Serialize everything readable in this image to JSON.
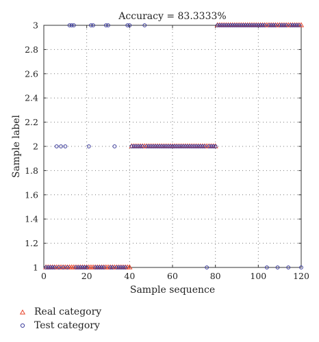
{
  "chart_data": {
    "type": "scatter",
    "title": "Accuracy = 83.3333%",
    "xlabel": "Sample sequence",
    "ylabel": "Sample label",
    "xlim": [
      0,
      120
    ],
    "ylim": [
      1,
      3
    ],
    "xticks": [
      0,
      20,
      40,
      60,
      80,
      100,
      120
    ],
    "xtick_labels": [
      "0",
      "20",
      "40",
      "60",
      "80",
      "100",
      "120"
    ],
    "yticks": [
      1,
      1.2,
      1.4,
      1.6,
      1.8,
      2,
      2.2,
      2.4,
      2.6,
      2.8,
      3
    ],
    "ytick_labels": [
      "1",
      "1.2",
      "1.4",
      "1.6",
      "1.8",
      "2",
      "2.2",
      "2.4",
      "2.6",
      "2.8",
      "3"
    ],
    "grid": true,
    "legend_position": "below-left",
    "series": [
      {
        "name": "Real category",
        "marker": "triangle",
        "color": "#e8432a",
        "x": [
          1,
          2,
          3,
          4,
          5,
          6,
          7,
          8,
          9,
          10,
          11,
          12,
          13,
          14,
          15,
          16,
          17,
          18,
          19,
          20,
          21,
          22,
          23,
          24,
          25,
          26,
          27,
          28,
          29,
          30,
          31,
          32,
          33,
          34,
          35,
          36,
          37,
          38,
          39,
          40,
          41,
          42,
          43,
          44,
          45,
          46,
          47,
          48,
          49,
          50,
          51,
          52,
          53,
          54,
          55,
          56,
          57,
          58,
          59,
          60,
          61,
          62,
          63,
          64,
          65,
          66,
          67,
          68,
          69,
          70,
          71,
          72,
          73,
          74,
          75,
          76,
          77,
          78,
          79,
          80,
          81,
          82,
          83,
          84,
          85,
          86,
          87,
          88,
          89,
          90,
          91,
          92,
          93,
          94,
          95,
          96,
          97,
          98,
          99,
          100,
          101,
          102,
          103,
          104,
          105,
          106,
          107,
          108,
          109,
          110,
          111,
          112,
          113,
          114,
          115,
          116,
          117,
          118,
          119,
          120
        ],
        "y": [
          1,
          1,
          1,
          1,
          1,
          1,
          1,
          1,
          1,
          1,
          1,
          1,
          1,
          1,
          1,
          1,
          1,
          1,
          1,
          1,
          1,
          1,
          1,
          1,
          1,
          1,
          1,
          1,
          1,
          1,
          1,
          1,
          1,
          1,
          1,
          1,
          1,
          1,
          1,
          1,
          2,
          2,
          2,
          2,
          2,
          2,
          2,
          2,
          2,
          2,
          2,
          2,
          2,
          2,
          2,
          2,
          2,
          2,
          2,
          2,
          2,
          2,
          2,
          2,
          2,
          2,
          2,
          2,
          2,
          2,
          2,
          2,
          2,
          2,
          2,
          2,
          2,
          2,
          2,
          2,
          3,
          3,
          3,
          3,
          3,
          3,
          3,
          3,
          3,
          3,
          3,
          3,
          3,
          3,
          3,
          3,
          3,
          3,
          3,
          3,
          3,
          3,
          3,
          3,
          3,
          3,
          3,
          3,
          3,
          3,
          3,
          3,
          3,
          3,
          3,
          3,
          3,
          3,
          3,
          3
        ]
      },
      {
        "name": "Test category",
        "marker": "circle",
        "color": "#3c3c9c",
        "x": [
          1,
          2,
          3,
          4,
          5,
          6,
          7,
          8,
          9,
          10,
          11,
          12,
          13,
          14,
          15,
          16,
          17,
          18,
          19,
          20,
          21,
          22,
          23,
          24,
          25,
          26,
          27,
          28,
          29,
          30,
          31,
          32,
          33,
          34,
          35,
          36,
          37,
          38,
          39,
          40,
          41,
          42,
          43,
          44,
          45,
          46,
          47,
          48,
          49,
          50,
          51,
          52,
          53,
          54,
          55,
          56,
          57,
          58,
          59,
          60,
          61,
          62,
          63,
          64,
          65,
          66,
          67,
          68,
          69,
          70,
          71,
          72,
          73,
          74,
          75,
          76,
          77,
          78,
          79,
          80,
          81,
          82,
          83,
          84,
          85,
          86,
          87,
          88,
          89,
          90,
          91,
          92,
          93,
          94,
          95,
          96,
          97,
          98,
          99,
          100,
          101,
          102,
          103,
          104,
          105,
          106,
          107,
          108,
          109,
          110,
          111,
          112,
          113,
          114,
          115,
          116,
          117,
          118,
          119,
          120
        ],
        "y": [
          1,
          1,
          1,
          1,
          1,
          2,
          1,
          2,
          1,
          2,
          1,
          3,
          3,
          3,
          1,
          1,
          1,
          1,
          1,
          1,
          2,
          3,
          3,
          1,
          1,
          1,
          1,
          1,
          3,
          3,
          1,
          1,
          2,
          1,
          1,
          1,
          1,
          1,
          3,
          3,
          2,
          2,
          2,
          2,
          2,
          2,
          3,
          2,
          2,
          2,
          2,
          2,
          2,
          2,
          2,
          2,
          2,
          2,
          2,
          2,
          2,
          2,
          2,
          2,
          2,
          2,
          2,
          2,
          2,
          2,
          2,
          2,
          2,
          2,
          2,
          1,
          2,
          2,
          2,
          2,
          3,
          3,
          3,
          3,
          3,
          3,
          3,
          3,
          3,
          3,
          3,
          3,
          3,
          3,
          3,
          3,
          3,
          3,
          3,
          3,
          3,
          3,
          3,
          1,
          3,
          3,
          3,
          3,
          1,
          3,
          3,
          3,
          3,
          1,
          3,
          3,
          3,
          3,
          3,
          1
        ]
      }
    ]
  }
}
